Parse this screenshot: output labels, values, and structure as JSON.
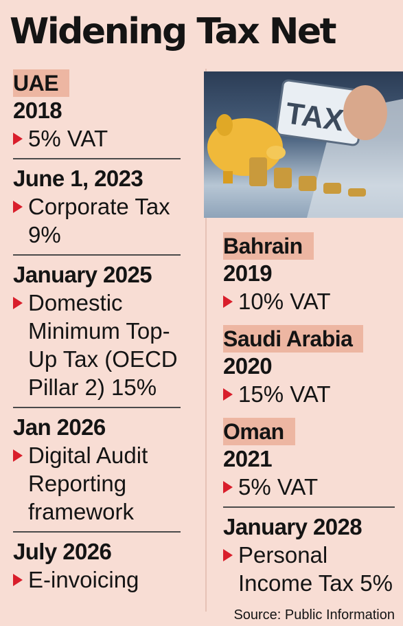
{
  "title": "Widening Tax Net",
  "left": {
    "country": "UAE",
    "entries": [
      {
        "date": "2018",
        "lines": [
          "5% VAT"
        ]
      },
      {
        "date": "June 1, 2023",
        "lines": [
          "Corporate Tax",
          "9%"
        ]
      },
      {
        "date": "January 2025",
        "lines": [
          "Domestic",
          "Minimum Top-",
          "Up Tax (OECD",
          "Pillar 2) 15%"
        ]
      },
      {
        "date": "Jan 2026",
        "lines": [
          "Digital Audit",
          "Reporting",
          "framework"
        ]
      },
      {
        "date": "July 2026",
        "lines": [
          "E-invoicing"
        ]
      }
    ]
  },
  "right": {
    "bahrain": {
      "country": "Bahrain",
      "date": "2019",
      "lines": [
        "10% VAT"
      ]
    },
    "saudi": {
      "country": "Saudi Arabia",
      "date": "2020",
      "lines": [
        "15% VAT"
      ]
    },
    "oman": {
      "country": "Oman",
      "date": "2021",
      "lines": [
        "5% VAT"
      ],
      "next": {
        "date": "January 2028",
        "lines": [
          "Personal",
          "Income Tax 5%"
        ]
      }
    }
  },
  "photo": {
    "sign_text": "TAX"
  },
  "source": "Source: Public Information",
  "colors": {
    "background": "#f8ddd4",
    "highlight": "#edb6a2",
    "arrow": "#d91e2b"
  }
}
